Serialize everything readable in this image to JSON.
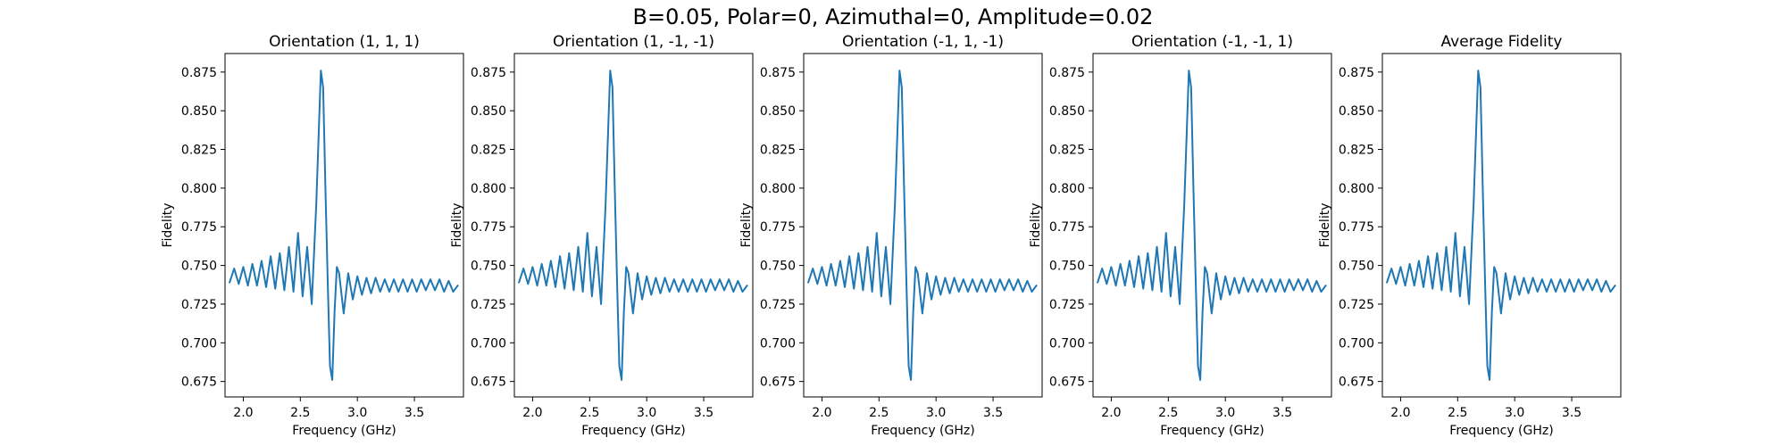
{
  "figure": {
    "suptitle": "B=0.05, Polar=0, Azimuthal=0, Amplitude=0.02"
  },
  "chart_data": [
    {
      "type": "line",
      "title": "Orientation (1, 1, 1)",
      "xlabel": "Frequency (GHz)",
      "ylabel": "Fidelity",
      "xlim": [
        1.84,
        3.93
      ],
      "ylim": [
        0.665,
        0.887
      ],
      "xticks": [
        2.0,
        2.5,
        3.0,
        3.5
      ],
      "xtick_labels": [
        "2.0",
        "2.5",
        "3.0",
        "3.5"
      ],
      "yticks": [
        0.675,
        0.7,
        0.725,
        0.75,
        0.775,
        0.8,
        0.825,
        0.85,
        0.875
      ],
      "ytick_labels": [
        "0.675",
        "0.700",
        "0.725",
        "0.750",
        "0.775",
        "0.800",
        "0.825",
        "0.850",
        "0.875"
      ],
      "color": "#1f77b4",
      "series": [
        {
          "x": [
            1.88,
            1.92,
            1.96,
            2.0,
            2.04,
            2.08,
            2.12,
            2.16,
            2.2,
            2.24,
            2.28,
            2.32,
            2.36,
            2.4,
            2.44,
            2.48,
            2.52,
            2.56,
            2.6,
            2.64,
            2.68,
            2.7,
            2.72,
            2.74,
            2.76,
            2.78,
            2.8,
            2.82,
            2.84,
            2.88,
            2.92,
            2.96,
            3.0,
            3.04,
            3.08,
            3.12,
            3.16,
            3.2,
            3.24,
            3.28,
            3.32,
            3.36,
            3.4,
            3.44,
            3.48,
            3.52,
            3.56,
            3.6,
            3.64,
            3.68,
            3.72,
            3.76,
            3.8,
            3.84,
            3.88
          ],
          "y": [
            0.739,
            0.748,
            0.738,
            0.749,
            0.737,
            0.751,
            0.737,
            0.753,
            0.736,
            0.756,
            0.735,
            0.758,
            0.734,
            0.762,
            0.733,
            0.771,
            0.73,
            0.762,
            0.725,
            0.79,
            0.876,
            0.865,
            0.8,
            0.74,
            0.685,
            0.676,
            0.72,
            0.749,
            0.745,
            0.719,
            0.745,
            0.728,
            0.743,
            0.731,
            0.742,
            0.732,
            0.742,
            0.733,
            0.741,
            0.733,
            0.741,
            0.733,
            0.741,
            0.733,
            0.741,
            0.733,
            0.741,
            0.734,
            0.741,
            0.734,
            0.741,
            0.733,
            0.74,
            0.733,
            0.737
          ]
        }
      ]
    },
    {
      "type": "line",
      "title": "Orientation (1, -1, -1)",
      "xlabel": "Frequency (GHz)",
      "ylabel": "Fidelity",
      "xlim": [
        1.84,
        3.93
      ],
      "ylim": [
        0.665,
        0.887
      ],
      "xticks": [
        2.0,
        2.5,
        3.0,
        3.5
      ],
      "xtick_labels": [
        "2.0",
        "2.5",
        "3.0",
        "3.5"
      ],
      "yticks": [
        0.675,
        0.7,
        0.725,
        0.75,
        0.775,
        0.8,
        0.825,
        0.85,
        0.875
      ],
      "ytick_labels": [
        "0.675",
        "0.700",
        "0.725",
        "0.750",
        "0.775",
        "0.800",
        "0.825",
        "0.850",
        "0.875"
      ],
      "color": "#1f77b4",
      "series": [
        {
          "x": [
            1.88,
            1.92,
            1.96,
            2.0,
            2.04,
            2.08,
            2.12,
            2.16,
            2.2,
            2.24,
            2.28,
            2.32,
            2.36,
            2.4,
            2.44,
            2.48,
            2.52,
            2.56,
            2.6,
            2.64,
            2.68,
            2.7,
            2.72,
            2.74,
            2.76,
            2.78,
            2.8,
            2.82,
            2.84,
            2.88,
            2.92,
            2.96,
            3.0,
            3.04,
            3.08,
            3.12,
            3.16,
            3.2,
            3.24,
            3.28,
            3.32,
            3.36,
            3.4,
            3.44,
            3.48,
            3.52,
            3.56,
            3.6,
            3.64,
            3.68,
            3.72,
            3.76,
            3.8,
            3.84,
            3.88
          ],
          "y": [
            0.739,
            0.748,
            0.738,
            0.749,
            0.737,
            0.751,
            0.737,
            0.753,
            0.736,
            0.756,
            0.735,
            0.758,
            0.734,
            0.762,
            0.733,
            0.771,
            0.73,
            0.762,
            0.725,
            0.79,
            0.876,
            0.865,
            0.8,
            0.74,
            0.685,
            0.676,
            0.72,
            0.749,
            0.745,
            0.719,
            0.745,
            0.728,
            0.743,
            0.731,
            0.742,
            0.732,
            0.742,
            0.733,
            0.741,
            0.733,
            0.741,
            0.733,
            0.741,
            0.733,
            0.741,
            0.733,
            0.741,
            0.734,
            0.741,
            0.734,
            0.741,
            0.733,
            0.74,
            0.733,
            0.737
          ]
        }
      ]
    },
    {
      "type": "line",
      "title": "Orientation (-1, 1, -1)",
      "xlabel": "Frequency (GHz)",
      "ylabel": "Fidelity",
      "xlim": [
        1.84,
        3.93
      ],
      "ylim": [
        0.665,
        0.887
      ],
      "xticks": [
        2.0,
        2.5,
        3.0,
        3.5
      ],
      "xtick_labels": [
        "2.0",
        "2.5",
        "3.0",
        "3.5"
      ],
      "yticks": [
        0.675,
        0.7,
        0.725,
        0.75,
        0.775,
        0.8,
        0.825,
        0.85,
        0.875
      ],
      "ytick_labels": [
        "0.675",
        "0.700",
        "0.725",
        "0.750",
        "0.775",
        "0.800",
        "0.825",
        "0.850",
        "0.875"
      ],
      "color": "#1f77b4",
      "series": [
        {
          "x": [
            1.88,
            1.92,
            1.96,
            2.0,
            2.04,
            2.08,
            2.12,
            2.16,
            2.2,
            2.24,
            2.28,
            2.32,
            2.36,
            2.4,
            2.44,
            2.48,
            2.52,
            2.56,
            2.6,
            2.64,
            2.68,
            2.7,
            2.72,
            2.74,
            2.76,
            2.78,
            2.8,
            2.82,
            2.84,
            2.88,
            2.92,
            2.96,
            3.0,
            3.04,
            3.08,
            3.12,
            3.16,
            3.2,
            3.24,
            3.28,
            3.32,
            3.36,
            3.4,
            3.44,
            3.48,
            3.52,
            3.56,
            3.6,
            3.64,
            3.68,
            3.72,
            3.76,
            3.8,
            3.84,
            3.88
          ],
          "y": [
            0.739,
            0.748,
            0.738,
            0.749,
            0.737,
            0.751,
            0.737,
            0.753,
            0.736,
            0.756,
            0.735,
            0.758,
            0.734,
            0.762,
            0.733,
            0.771,
            0.73,
            0.762,
            0.725,
            0.79,
            0.876,
            0.865,
            0.8,
            0.74,
            0.685,
            0.676,
            0.72,
            0.749,
            0.745,
            0.719,
            0.745,
            0.728,
            0.743,
            0.731,
            0.742,
            0.732,
            0.742,
            0.733,
            0.741,
            0.733,
            0.741,
            0.733,
            0.741,
            0.733,
            0.741,
            0.733,
            0.741,
            0.734,
            0.741,
            0.734,
            0.741,
            0.733,
            0.74,
            0.733,
            0.737
          ]
        }
      ]
    },
    {
      "type": "line",
      "title": "Orientation (-1, -1, 1)",
      "xlabel": "Frequency (GHz)",
      "ylabel": "Fidelity",
      "xlim": [
        1.84,
        3.93
      ],
      "ylim": [
        0.665,
        0.887
      ],
      "xticks": [
        2.0,
        2.5,
        3.0,
        3.5
      ],
      "xtick_labels": [
        "2.0",
        "2.5",
        "3.0",
        "3.5"
      ],
      "yticks": [
        0.675,
        0.7,
        0.725,
        0.75,
        0.775,
        0.8,
        0.825,
        0.85,
        0.875
      ],
      "ytick_labels": [
        "0.675",
        "0.700",
        "0.725",
        "0.750",
        "0.775",
        "0.800",
        "0.825",
        "0.850",
        "0.875"
      ],
      "color": "#1f77b4",
      "series": [
        {
          "x": [
            1.88,
            1.92,
            1.96,
            2.0,
            2.04,
            2.08,
            2.12,
            2.16,
            2.2,
            2.24,
            2.28,
            2.32,
            2.36,
            2.4,
            2.44,
            2.48,
            2.52,
            2.56,
            2.6,
            2.64,
            2.68,
            2.7,
            2.72,
            2.74,
            2.76,
            2.78,
            2.8,
            2.82,
            2.84,
            2.88,
            2.92,
            2.96,
            3.0,
            3.04,
            3.08,
            3.12,
            3.16,
            3.2,
            3.24,
            3.28,
            3.32,
            3.36,
            3.4,
            3.44,
            3.48,
            3.52,
            3.56,
            3.6,
            3.64,
            3.68,
            3.72,
            3.76,
            3.8,
            3.84,
            3.88
          ],
          "y": [
            0.739,
            0.748,
            0.738,
            0.749,
            0.737,
            0.751,
            0.737,
            0.753,
            0.736,
            0.756,
            0.735,
            0.758,
            0.734,
            0.762,
            0.733,
            0.771,
            0.73,
            0.762,
            0.725,
            0.79,
            0.876,
            0.865,
            0.8,
            0.74,
            0.685,
            0.676,
            0.72,
            0.749,
            0.745,
            0.719,
            0.745,
            0.728,
            0.743,
            0.731,
            0.742,
            0.732,
            0.742,
            0.733,
            0.741,
            0.733,
            0.741,
            0.733,
            0.741,
            0.733,
            0.741,
            0.733,
            0.741,
            0.734,
            0.741,
            0.734,
            0.741,
            0.733,
            0.74,
            0.733,
            0.737
          ]
        }
      ]
    },
    {
      "type": "line",
      "title": "Average Fidelity",
      "xlabel": "Frequency (GHz)",
      "ylabel": "Fidelity",
      "xlim": [
        1.84,
        3.93
      ],
      "ylim": [
        0.665,
        0.887
      ],
      "xticks": [
        2.0,
        2.5,
        3.0,
        3.5
      ],
      "xtick_labels": [
        "2.0",
        "2.5",
        "3.0",
        "3.5"
      ],
      "yticks": [
        0.675,
        0.7,
        0.725,
        0.75,
        0.775,
        0.8,
        0.825,
        0.85,
        0.875
      ],
      "ytick_labels": [
        "0.675",
        "0.700",
        "0.725",
        "0.750",
        "0.775",
        "0.800",
        "0.825",
        "0.850",
        "0.875"
      ],
      "color": "#1f77b4",
      "series": [
        {
          "x": [
            1.88,
            1.92,
            1.96,
            2.0,
            2.04,
            2.08,
            2.12,
            2.16,
            2.2,
            2.24,
            2.28,
            2.32,
            2.36,
            2.4,
            2.44,
            2.48,
            2.52,
            2.56,
            2.6,
            2.64,
            2.68,
            2.7,
            2.72,
            2.74,
            2.76,
            2.78,
            2.8,
            2.82,
            2.84,
            2.88,
            2.92,
            2.96,
            3.0,
            3.04,
            3.08,
            3.12,
            3.16,
            3.2,
            3.24,
            3.28,
            3.32,
            3.36,
            3.4,
            3.44,
            3.48,
            3.52,
            3.56,
            3.6,
            3.64,
            3.68,
            3.72,
            3.76,
            3.8,
            3.84,
            3.88
          ],
          "y": [
            0.739,
            0.748,
            0.738,
            0.749,
            0.737,
            0.751,
            0.737,
            0.753,
            0.736,
            0.756,
            0.735,
            0.758,
            0.734,
            0.762,
            0.733,
            0.771,
            0.73,
            0.762,
            0.725,
            0.79,
            0.876,
            0.865,
            0.8,
            0.74,
            0.685,
            0.676,
            0.72,
            0.749,
            0.745,
            0.719,
            0.745,
            0.728,
            0.743,
            0.731,
            0.742,
            0.732,
            0.742,
            0.733,
            0.741,
            0.733,
            0.741,
            0.733,
            0.741,
            0.733,
            0.741,
            0.733,
            0.741,
            0.734,
            0.741,
            0.734,
            0.741,
            0.733,
            0.74,
            0.733,
            0.737
          ]
        }
      ]
    }
  ]
}
